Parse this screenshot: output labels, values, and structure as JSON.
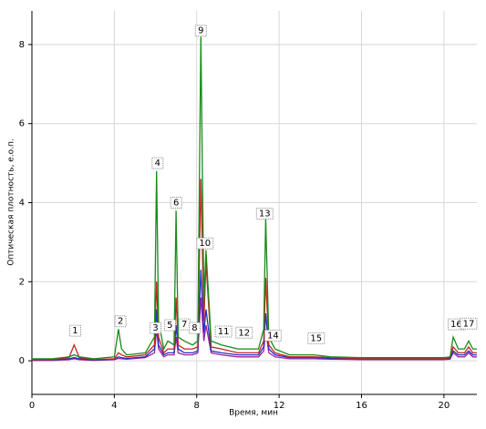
{
  "chart_data": {
    "type": "line",
    "x_label": "Время, мин",
    "y_label": "Оптическая плотность, е.о.п.",
    "xlim": [
      0,
      21.6
    ],
    "ylim": [
      -0.85,
      8.85
    ],
    "xticks": [
      0,
      4,
      8,
      12,
      16,
      20
    ],
    "yticks": [
      0,
      2,
      4,
      6,
      8
    ],
    "grid": true,
    "x": [
      0,
      1,
      1.8,
      2.05,
      2.3,
      3,
      4,
      4.2,
      4.35,
      4.6,
      5.5,
      5.95,
      6.05,
      6.15,
      6.4,
      6.6,
      6.9,
      7.0,
      7.1,
      7.4,
      7.8,
      8.05,
      8.2,
      8.35,
      8.45,
      8.7,
      9.2,
      10,
      10.6,
      11,
      11.25,
      11.35,
      11.5,
      11.8,
      12.5,
      13.7,
      14.5,
      16,
      18,
      20,
      20.3,
      20.45,
      20.7,
      21.0,
      21.2,
      21.4,
      21.6
    ],
    "series": [
      {
        "color": "#1a8a1a",
        "values": [
          0.05,
          0.05,
          0.1,
          0.15,
          0.1,
          0.05,
          0.1,
          0.8,
          0.3,
          0.15,
          0.2,
          0.6,
          4.8,
          1.0,
          0.3,
          0.5,
          0.4,
          3.8,
          0.6,
          0.5,
          0.4,
          0.5,
          8.2,
          1.5,
          2.8,
          0.5,
          0.4,
          0.3,
          0.3,
          0.3,
          0.8,
          3.6,
          0.6,
          0.3,
          0.15,
          0.15,
          0.1,
          0.08,
          0.08,
          0.08,
          0.1,
          0.6,
          0.3,
          0.3,
          0.5,
          0.3,
          0.3
        ]
      },
      {
        "color": "#c0281e",
        "values": [
          0.03,
          0.03,
          0.08,
          0.4,
          0.08,
          0.03,
          0.05,
          0.2,
          0.15,
          0.1,
          0.15,
          0.4,
          2.0,
          0.6,
          0.2,
          0.3,
          0.3,
          1.6,
          0.4,
          0.3,
          0.3,
          0.35,
          4.6,
          1.0,
          2.5,
          0.35,
          0.3,
          0.2,
          0.2,
          0.2,
          0.5,
          2.1,
          0.4,
          0.2,
          0.1,
          0.1,
          0.08,
          0.06,
          0.06,
          0.06,
          0.08,
          0.35,
          0.2,
          0.2,
          0.35,
          0.2,
          0.2
        ]
      },
      {
        "color": "#2030c8",
        "values": [
          0.02,
          0.02,
          0.05,
          0.08,
          0.05,
          0.02,
          0.04,
          0.1,
          0.08,
          0.06,
          0.1,
          0.3,
          1.3,
          0.4,
          0.15,
          0.2,
          0.2,
          0.9,
          0.3,
          0.2,
          0.2,
          0.25,
          2.3,
          0.7,
          1.3,
          0.25,
          0.2,
          0.15,
          0.15,
          0.15,
          0.35,
          1.2,
          0.3,
          0.15,
          0.08,
          0.08,
          0.06,
          0.05,
          0.05,
          0.05,
          0.06,
          0.25,
          0.15,
          0.15,
          0.25,
          0.15,
          0.15
        ]
      },
      {
        "color": "#a020a0",
        "values": [
          0.01,
          0.01,
          0.03,
          0.05,
          0.03,
          0.01,
          0.03,
          0.06,
          0.05,
          0.04,
          0.08,
          0.2,
          0.8,
          0.3,
          0.1,
          0.15,
          0.15,
          0.6,
          0.2,
          0.15,
          0.15,
          0.2,
          1.6,
          0.5,
          0.9,
          0.2,
          0.15,
          0.1,
          0.1,
          0.1,
          0.25,
          0.8,
          0.2,
          0.1,
          0.05,
          0.05,
          0.04,
          0.03,
          0.03,
          0.03,
          0.04,
          0.2,
          0.1,
          0.1,
          0.2,
          0.1,
          0.1
        ]
      }
    ],
    "annotations": [
      {
        "label": "1",
        "x": 2.1,
        "y": 0.76
      },
      {
        "label": "2",
        "x": 4.3,
        "y": 1.0
      },
      {
        "label": "3",
        "x": 6.0,
        "y": 0.83
      },
      {
        "label": "4",
        "x": 6.1,
        "y": 5.0
      },
      {
        "label": "5",
        "x": 6.7,
        "y": 0.9
      },
      {
        "label": "6",
        "x": 7.0,
        "y": 4.0
      },
      {
        "label": "7",
        "x": 7.4,
        "y": 0.92
      },
      {
        "label": "8",
        "x": 7.9,
        "y": 0.83
      },
      {
        "label": "9",
        "x": 8.2,
        "y": 8.35
      },
      {
        "label": "10",
        "x": 8.4,
        "y": 2.97
      },
      {
        "label": "11",
        "x": 9.3,
        "y": 0.74
      },
      {
        "label": "12",
        "x": 10.3,
        "y": 0.71
      },
      {
        "label": "13",
        "x": 11.3,
        "y": 3.72
      },
      {
        "label": "14",
        "x": 11.7,
        "y": 0.64
      },
      {
        "label": "15",
        "x": 13.8,
        "y": 0.57
      },
      {
        "label": "16",
        "x": 20.6,
        "y": 0.92
      },
      {
        "label": "17",
        "x": 21.2,
        "y": 0.94
      }
    ]
  }
}
